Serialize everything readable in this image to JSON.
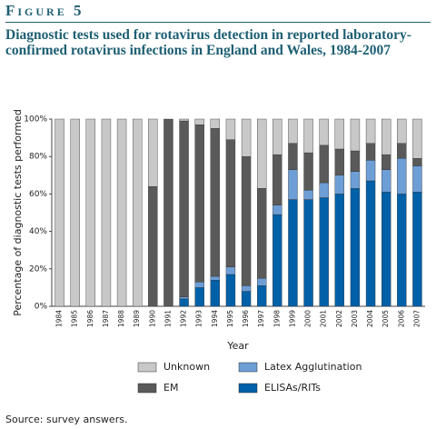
{
  "figure_label": "Figure 5",
  "source": "Source: survey answers.",
  "chart_data": {
    "type": "stacked_bar",
    "title": "Diagnostic tests used for rotavirus detection in reported laboratory-confirmed rotavirus infections in England and Wales, 1984-2007",
    "x_label": "Year",
    "y_label": "Percentage of diagnostic tests performed",
    "categories": [
      "1984",
      "1985",
      "1986",
      "1987",
      "1988",
      "1989",
      "1990",
      "1991",
      "1992",
      "1993",
      "1994",
      "1995",
      "1996",
      "1997",
      "1998",
      "1999",
      "2000",
      "2001",
      "2002",
      "2003",
      "2004",
      "2005",
      "2006",
      "2007"
    ],
    "series": [
      {
        "name": "ELISAs/RITs",
        "color": "#0060a8",
        "values": [
          0,
          0,
          0,
          0,
          0,
          0,
          0,
          0,
          4,
          10,
          14,
          17,
          8,
          11,
          49,
          57,
          57,
          58,
          60,
          63,
          67,
          61,
          60,
          61
        ]
      },
      {
        "name": "Latex Agglutination",
        "color": "#6d9ed6",
        "values": [
          0,
          0,
          0,
          0,
          0,
          0,
          0,
          0,
          1,
          3,
          2,
          4,
          3,
          4,
          5,
          16,
          5,
          8,
          10,
          9,
          11,
          12,
          19,
          14
        ]
      },
      {
        "name": "EM",
        "color": "#5a5a5a",
        "values": [
          0,
          0,
          0,
          0,
          0,
          0,
          64,
          100,
          94,
          84,
          79,
          68,
          69,
          48,
          27,
          14,
          20,
          20,
          14,
          11,
          9,
          8,
          8,
          4
        ]
      },
      {
        "name": "Unknown",
        "color": "#c8c8c8",
        "values": [
          100,
          100,
          100,
          100,
          100,
          100,
          36,
          0,
          1,
          3,
          5,
          11,
          20,
          37,
          19,
          13,
          18,
          14,
          16,
          17,
          13,
          19,
          13,
          21
        ]
      }
    ],
    "ylim": [
      0,
      100
    ],
    "yticks": [
      {
        "value": 0,
        "label": "0%"
      },
      {
        "value": 20,
        "label": "20%"
      },
      {
        "value": 40,
        "label": "40%"
      },
      {
        "value": 60,
        "label": "60%"
      },
      {
        "value": 80,
        "label": "80%"
      },
      {
        "value": 100,
        "label": "100%"
      }
    ]
  }
}
